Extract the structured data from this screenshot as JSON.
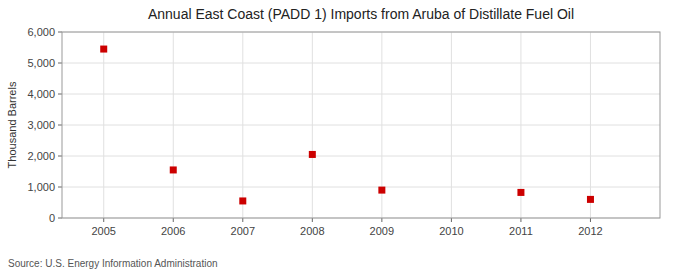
{
  "chart_data": {
    "type": "scatter",
    "title": "Annual East Coast (PADD 1) Imports from Aruba of Distillate Fuel Oil",
    "y_label": "Thousand Barrels",
    "source": "Source: U.S. Energy Information Administration",
    "x": [
      2005,
      2006,
      2007,
      2008,
      2009,
      2010,
      2011,
      2012
    ],
    "values": [
      5450,
      1550,
      550,
      2050,
      900,
      null,
      825,
      600
    ],
    "color": "#cc0000",
    "marker": "square",
    "xlim": [
      2004.4,
      2013.0
    ],
    "xticks": [
      2005,
      2006,
      2007,
      2008,
      2009,
      2010,
      2011,
      2012
    ],
    "ylim": [
      0,
      6000
    ],
    "yticks": [
      0,
      {
        "value": 1000,
        "label": "1,000"
      },
      {
        "value": 2000,
        "label": "2,000"
      },
      {
        "value": 3000,
        "label": "3,000"
      },
      {
        "value": 4000,
        "label": "4,000"
      },
      {
        "value": 5000,
        "label": "5,000"
      },
      {
        "value": 6000,
        "label": "6,000"
      }
    ],
    "grid": true
  }
}
